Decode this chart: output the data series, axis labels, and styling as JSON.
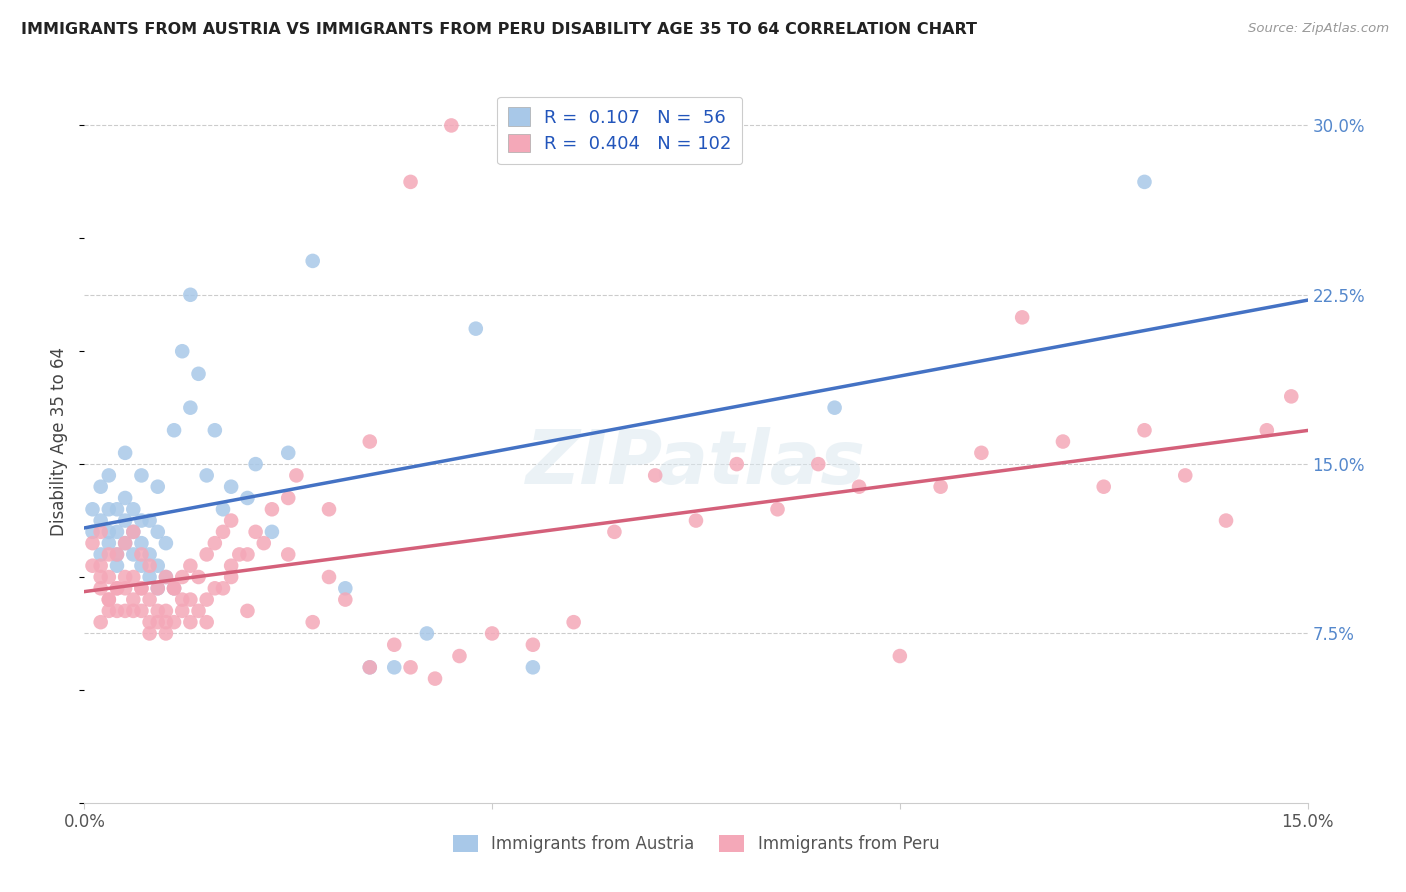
{
  "title": "IMMIGRANTS FROM AUSTRIA VS IMMIGRANTS FROM PERU DISABILITY AGE 35 TO 64 CORRELATION CHART",
  "source": "Source: ZipAtlas.com",
  "ylabel": "Disability Age 35 to 64",
  "xmin": 0.0,
  "xmax": 0.15,
  "ymin": 0.0,
  "ymax": 0.32,
  "austria_color": "#a8c8e8",
  "peru_color": "#f4a8b8",
  "austria_line_color": "#4472c4",
  "peru_line_color": "#d4607a",
  "watermark": "ZIPatlas",
  "austria_R": 0.107,
  "austria_N": 56,
  "peru_R": 0.404,
  "peru_N": 102,
  "austria_x": [
    0.001,
    0.001,
    0.002,
    0.002,
    0.002,
    0.003,
    0.003,
    0.003,
    0.003,
    0.004,
    0.004,
    0.004,
    0.004,
    0.005,
    0.005,
    0.005,
    0.005,
    0.006,
    0.006,
    0.006,
    0.007,
    0.007,
    0.007,
    0.007,
    0.008,
    0.008,
    0.008,
    0.009,
    0.009,
    0.009,
    0.009,
    0.01,
    0.01,
    0.011,
    0.011,
    0.012,
    0.013,
    0.013,
    0.014,
    0.015,
    0.016,
    0.017,
    0.018,
    0.02,
    0.021,
    0.023,
    0.025,
    0.028,
    0.032,
    0.035,
    0.038,
    0.042,
    0.048,
    0.055,
    0.092,
    0.13
  ],
  "austria_y": [
    0.12,
    0.13,
    0.11,
    0.125,
    0.14,
    0.115,
    0.12,
    0.13,
    0.145,
    0.105,
    0.11,
    0.12,
    0.13,
    0.115,
    0.125,
    0.135,
    0.155,
    0.11,
    0.12,
    0.13,
    0.105,
    0.115,
    0.125,
    0.145,
    0.1,
    0.11,
    0.125,
    0.095,
    0.105,
    0.12,
    0.14,
    0.1,
    0.115,
    0.095,
    0.165,
    0.2,
    0.175,
    0.225,
    0.19,
    0.145,
    0.165,
    0.13,
    0.14,
    0.135,
    0.15,
    0.12,
    0.155,
    0.24,
    0.095,
    0.06,
    0.06,
    0.075,
    0.21,
    0.06,
    0.175,
    0.275
  ],
  "peru_x": [
    0.001,
    0.001,
    0.002,
    0.002,
    0.002,
    0.003,
    0.003,
    0.003,
    0.004,
    0.004,
    0.004,
    0.005,
    0.005,
    0.005,
    0.006,
    0.006,
    0.006,
    0.007,
    0.007,
    0.007,
    0.008,
    0.008,
    0.008,
    0.009,
    0.009,
    0.01,
    0.01,
    0.01,
    0.011,
    0.011,
    0.012,
    0.012,
    0.013,
    0.013,
    0.013,
    0.014,
    0.014,
    0.015,
    0.015,
    0.016,
    0.016,
    0.017,
    0.017,
    0.018,
    0.018,
    0.019,
    0.02,
    0.021,
    0.022,
    0.023,
    0.025,
    0.026,
    0.028,
    0.03,
    0.032,
    0.035,
    0.038,
    0.04,
    0.043,
    0.046,
    0.05,
    0.055,
    0.06,
    0.065,
    0.07,
    0.075,
    0.08,
    0.085,
    0.09,
    0.095,
    0.1,
    0.105,
    0.11,
    0.115,
    0.12,
    0.125,
    0.13,
    0.135,
    0.14,
    0.145,
    0.148,
    0.04,
    0.045,
    0.035,
    0.03,
    0.025,
    0.02,
    0.018,
    0.015,
    0.012,
    0.01,
    0.008,
    0.006,
    0.004,
    0.003,
    0.002,
    0.002,
    0.003,
    0.005,
    0.007,
    0.009,
    0.011
  ],
  "peru_y": [
    0.105,
    0.115,
    0.095,
    0.105,
    0.12,
    0.09,
    0.1,
    0.11,
    0.085,
    0.095,
    0.11,
    0.085,
    0.095,
    0.115,
    0.09,
    0.1,
    0.12,
    0.085,
    0.095,
    0.11,
    0.08,
    0.09,
    0.105,
    0.08,
    0.095,
    0.075,
    0.085,
    0.1,
    0.08,
    0.095,
    0.085,
    0.1,
    0.08,
    0.09,
    0.105,
    0.085,
    0.1,
    0.09,
    0.11,
    0.095,
    0.115,
    0.095,
    0.12,
    0.1,
    0.125,
    0.11,
    0.11,
    0.12,
    0.115,
    0.13,
    0.135,
    0.145,
    0.08,
    0.13,
    0.09,
    0.06,
    0.07,
    0.06,
    0.055,
    0.065,
    0.075,
    0.07,
    0.08,
    0.12,
    0.145,
    0.125,
    0.15,
    0.13,
    0.15,
    0.14,
    0.065,
    0.14,
    0.155,
    0.215,
    0.16,
    0.14,
    0.165,
    0.145,
    0.125,
    0.165,
    0.18,
    0.275,
    0.3,
    0.16,
    0.1,
    0.11,
    0.085,
    0.105,
    0.08,
    0.09,
    0.08,
    0.075,
    0.085,
    0.095,
    0.085,
    0.08,
    0.1,
    0.09,
    0.1,
    0.095,
    0.085,
    0.095
  ]
}
